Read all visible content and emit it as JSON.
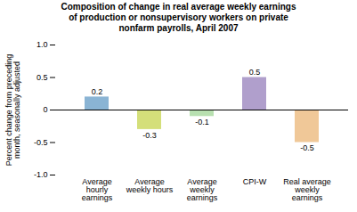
{
  "chart_data": {
    "type": "bar",
    "title": "Composition of change in real average weekly earnings\nof production or nonsupervisory workers on private\nnonfarm payrolls, April 2007",
    "ylabel": "Percent change from preceding\nmonth, seasonally adjusted",
    "categories": [
      "Average\nhourly\nearnings",
      "Average\nweekly hours",
      "Average\nweekly\nearnings",
      "CPI-W",
      "Real average\nweekly\nearnings"
    ],
    "values": [
      0.2,
      -0.3,
      -0.1,
      0.5,
      -0.5
    ],
    "colors": [
      "#8ab4d4",
      "#d4df7a",
      "#b8e0b0",
      "#b09fcc",
      "#f0c898"
    ],
    "ylim": [
      -1.0,
      1.0
    ],
    "yticks": [
      {
        "value": -1.0,
        "label": "-1.0"
      },
      -0.5,
      0,
      0.5,
      {
        "value": 1.0,
        "label": "1.0"
      }
    ],
    "data_labels": true,
    "grid": false
  }
}
